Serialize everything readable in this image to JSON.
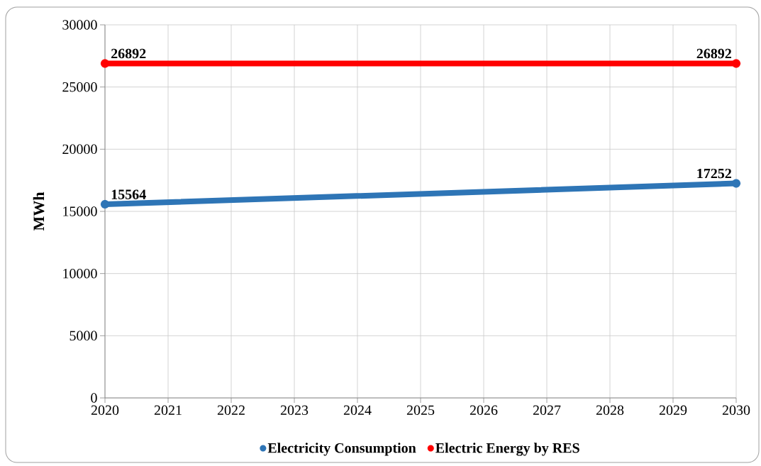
{
  "chart_data": {
    "type": "line",
    "ylabel": "MWh",
    "x": [
      2020,
      2030
    ],
    "series": [
      {
        "name": "Electricity Consumption",
        "color": "#2e75b6",
        "values": [
          15564,
          17252
        ]
      },
      {
        "name": "Electric Energy by RES",
        "color": "#ff0000",
        "values": [
          26892,
          26892
        ]
      }
    ],
    "xlim": [
      2020,
      2030
    ],
    "ylim": [
      0,
      30000
    ],
    "xticks": [
      2020,
      2021,
      2022,
      2023,
      2024,
      2025,
      2026,
      2027,
      2028,
      2029,
      2030
    ],
    "yticks": [
      0,
      5000,
      10000,
      15000,
      20000,
      25000,
      30000
    ],
    "grid": true,
    "legend": "bottom",
    "marker": "circle",
    "line_style": "solid",
    "data_labels": true
  }
}
